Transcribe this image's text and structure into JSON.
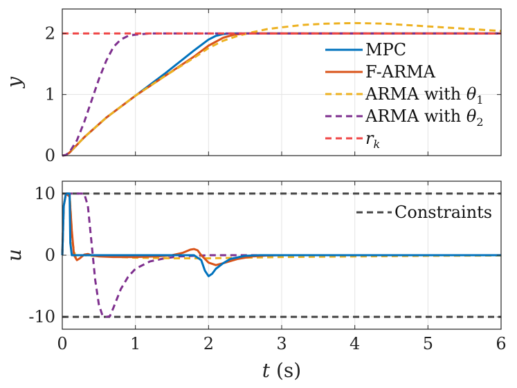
{
  "chart_data": [
    {
      "type": "line",
      "id": "top",
      "ylabel": "y",
      "xlabel": "",
      "xlim": [
        0,
        6
      ],
      "ylim": [
        0,
        2.4
      ],
      "xticks": [
        0,
        1,
        2,
        3,
        4,
        5,
        6
      ],
      "yticks": [
        0,
        1,
        2
      ],
      "ytick_labels": [
        "0",
        "1",
        "2"
      ],
      "grid": true,
      "legend_position": "right",
      "series": [
        {
          "name": "MPC",
          "label": "MPC",
          "color": "#0072BD",
          "dash": "solid",
          "x": [
            0,
            0.05,
            0.1,
            0.3,
            0.6,
            1.0,
            1.4,
            1.8,
            2.0,
            2.1,
            2.2,
            2.3,
            2.4,
            6
          ],
          "y": [
            0,
            0.01,
            0.05,
            0.3,
            0.62,
            0.98,
            1.34,
            1.72,
            1.9,
            1.96,
            1.99,
            2.0,
            2.0,
            2.0
          ]
        },
        {
          "name": "F-ARMA",
          "label": "F-ARMA",
          "color": "#D95319",
          "dash": "solid",
          "x": [
            0,
            0.05,
            0.1,
            0.3,
            0.6,
            1.0,
            1.4,
            1.8,
            2.0,
            2.2,
            2.35,
            2.5,
            6
          ],
          "y": [
            0,
            0.01,
            0.05,
            0.3,
            0.62,
            0.98,
            1.3,
            1.62,
            1.8,
            1.93,
            1.98,
            2.0,
            2.0
          ]
        },
        {
          "name": "ARMA with theta1",
          "label": "ARMA with ",
          "sym": "θ",
          "sub": "1",
          "color": "#EDB120",
          "dash": "dashed",
          "x": [
            0,
            0.05,
            0.1,
            0.3,
            0.6,
            1.0,
            1.4,
            1.8,
            2.0,
            2.2,
            2.4,
            2.6,
            2.8,
            3.0,
            3.3,
            3.6,
            4.0,
            4.4,
            4.8,
            5.2,
            5.6,
            6.0
          ],
          "y": [
            0,
            0.01,
            0.05,
            0.3,
            0.62,
            0.98,
            1.3,
            1.6,
            1.76,
            1.88,
            1.96,
            2.02,
            2.07,
            2.1,
            2.14,
            2.16,
            2.17,
            2.16,
            2.13,
            2.1,
            2.07,
            2.04
          ]
        },
        {
          "name": "ARMA with theta2",
          "label": "ARMA with ",
          "sym": "θ",
          "sub": "2",
          "color": "#7E2F8E",
          "dash": "dashed",
          "x": [
            0,
            0.05,
            0.1,
            0.2,
            0.3,
            0.4,
            0.5,
            0.6,
            0.7,
            0.8,
            0.9,
            1.0,
            1.1,
            1.2,
            1.3,
            6
          ],
          "y": [
            0,
            0.01,
            0.06,
            0.25,
            0.55,
            0.9,
            1.25,
            1.55,
            1.78,
            1.9,
            1.96,
            1.98,
            1.99,
            2.0,
            2.0,
            2.0
          ]
        },
        {
          "name": "r_k",
          "label": "r",
          "sub": "k",
          "color": "#EF4444",
          "dash": "dashed",
          "x": [
            0,
            6
          ],
          "y": [
            2,
            2
          ]
        }
      ]
    },
    {
      "type": "line",
      "id": "bottom",
      "ylabel": "u",
      "xlabel": "t (s)",
      "xlabel_var": "t",
      "xlabel_unit": " (s)",
      "xlim": [
        0,
        6
      ],
      "ylim": [
        -12,
        12
      ],
      "xticks": [
        0,
        1,
        2,
        3,
        4,
        5,
        6
      ],
      "xtick_labels": [
        "0",
        "1",
        "2",
        "3",
        "4",
        "5",
        "6"
      ],
      "yticks": [
        -10,
        0,
        10
      ],
      "ytick_labels": [
        "-10",
        "0",
        "10"
      ],
      "grid": true,
      "legend_position": "top-right",
      "series": [
        {
          "name": "Constraints upper",
          "color": "#444444",
          "dash": "dashed",
          "x": [
            0,
            6
          ],
          "y": [
            10,
            10
          ]
        },
        {
          "name": "Constraints lower",
          "color": "#444444",
          "dash": "dashed",
          "x": [
            0,
            6
          ],
          "y": [
            -10,
            -10
          ]
        },
        {
          "name": "ARMA with theta2",
          "color": "#7E2F8E",
          "dash": "dashed",
          "x": [
            0,
            0.02,
            0.05,
            0.3,
            0.35,
            0.4,
            0.45,
            0.5,
            0.55,
            0.6,
            0.65,
            0.7,
            0.8,
            0.9,
            1.0,
            1.2,
            1.4,
            1.6,
            1.8,
            2.0,
            6
          ],
          "y": [
            0,
            8,
            10,
            10,
            8,
            2,
            -4,
            -8,
            -9.8,
            -10,
            -9.9,
            -8.5,
            -5.5,
            -3.5,
            -2.2,
            -1.0,
            -0.5,
            -0.2,
            -0.1,
            0,
            0
          ]
        },
        {
          "name": "ARMA with theta1",
          "color": "#EDB120",
          "dash": "dashed",
          "x": [
            0,
            0.02,
            0.05,
            0.1,
            0.14,
            0.18,
            0.22,
            0.3,
            0.4,
            0.6,
            1.0,
            1.5,
            2.0,
            2.5,
            3.0,
            4.0,
            5.0,
            6.0
          ],
          "y": [
            0,
            8,
            10,
            10,
            2,
            -0.3,
            0,
            0,
            -0.1,
            -0.2,
            -0.4,
            -0.5,
            -0.5,
            -0.4,
            -0.3,
            -0.2,
            -0.1,
            -0.05
          ]
        },
        {
          "name": "F-ARMA",
          "color": "#D95319",
          "dash": "solid",
          "x": [
            0,
            0.02,
            0.05,
            0.1,
            0.13,
            0.16,
            0.2,
            0.24,
            0.3,
            0.35,
            0.4,
            0.5,
            0.7,
            1.0,
            1.3,
            1.5,
            1.65,
            1.75,
            1.8,
            1.85,
            1.9,
            2.0,
            2.1,
            2.2,
            2.4,
            2.6,
            2.8,
            3.0,
            6.0
          ],
          "y": [
            0,
            8,
            10,
            9.5,
            4,
            0,
            -0.8,
            -0.5,
            0.1,
            0.2,
            0,
            -0.2,
            -0.3,
            -0.3,
            -0.2,
            0,
            0.4,
            0.9,
            1.0,
            0.8,
            0,
            -1.2,
            -1.6,
            -1.3,
            -0.6,
            -0.2,
            -0.05,
            0,
            0
          ]
        },
        {
          "name": "MPC",
          "color": "#0072BD",
          "dash": "solid",
          "x": [
            0,
            0.02,
            0.05,
            0.1,
            0.11,
            0.13,
            0.15,
            0.5,
            1.0,
            1.5,
            1.8,
            1.9,
            1.95,
            2.0,
            2.05,
            2.1,
            2.2,
            2.3,
            2.5,
            2.7,
            3.0,
            6.0
          ],
          "y": [
            0,
            8,
            10,
            10,
            2,
            0,
            0,
            0,
            0,
            0,
            0,
            -0.8,
            -2.5,
            -3.4,
            -3.0,
            -2.2,
            -1.3,
            -0.6,
            -0.1,
            0,
            0,
            0
          ]
        }
      ],
      "legend": [
        {
          "name": "Constraints",
          "label": "Constraints",
          "color": "#444444",
          "dash": "dashed"
        }
      ]
    }
  ]
}
